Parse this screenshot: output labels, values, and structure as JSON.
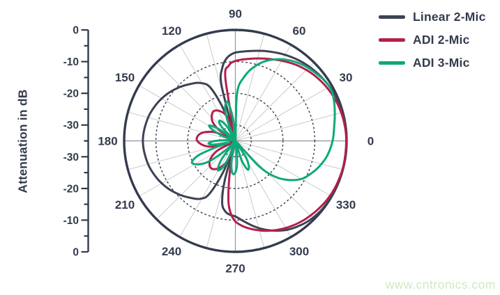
{
  "colors": {
    "text": "#343b4e",
    "outline": "#343b4e",
    "spoke": "#cbcbcb",
    "main_axis_line": "#8f9399",
    "grid_dotted": "#3c4356",
    "background": "#ffffff"
  },
  "labels": {
    "r_axis_title": "Attenuation in dB"
  },
  "legend": {
    "position": "top-right",
    "items": [
      {
        "label": "Linear 2-Mic",
        "color": "#3c4254"
      },
      {
        "label": "ADI 2-Mic",
        "color": "#b51f4a"
      },
      {
        "label": "ADI 3-Mic",
        "color": "#10a87a"
      }
    ]
  },
  "watermark": {
    "text": "www.cntronics.com",
    "color": "#cfe9c0"
  },
  "chart_data": {
    "type": "polar-line",
    "title": "",
    "r_axis": {
      "label": "Attenuation in dB",
      "range": [
        -35,
        0
      ],
      "major_tick_labels_db": [
        0,
        -10,
        -20,
        -30
      ],
      "minor_ticks_db": [
        -5,
        -15,
        -25,
        -35
      ],
      "grid_circles_db": [
        -10,
        -20,
        -30
      ]
    },
    "theta_axis": {
      "unit": "deg",
      "labels": [
        0,
        30,
        60,
        90,
        120,
        150,
        180,
        210,
        240,
        270,
        300,
        330
      ],
      "spoke_step_deg": 15
    },
    "series": [
      {
        "name": "Linear 2-Mic",
        "color": "#3c4254",
        "points": [
          [
            0,
            0
          ],
          [
            12,
            0
          ],
          [
            22,
            -0.3
          ],
          [
            32,
            -0.9
          ],
          [
            42,
            -1.7
          ],
          [
            52,
            -2.7
          ],
          [
            62,
            -3.9
          ],
          [
            72,
            -5.2
          ],
          [
            80,
            -6.2
          ],
          [
            86,
            -6.8
          ],
          [
            91,
            -7.3
          ],
          [
            96,
            -8.8
          ],
          [
            100,
            -11.5
          ],
          [
            104,
            -17
          ],
          [
            107,
            -35
          ],
          [
            110,
            -25
          ],
          [
            115,
            -16.5
          ],
          [
            121,
            -13.7
          ],
          [
            128,
            -12.2
          ],
          [
            136,
            -10.6
          ],
          [
            145,
            -9
          ],
          [
            155,
            -7.6
          ],
          [
            166,
            -6.5
          ],
          [
            180,
            -5.9
          ],
          [
            194,
            -6.5
          ],
          [
            205,
            -7.6
          ],
          [
            215,
            -9
          ],
          [
            224,
            -10.6
          ],
          [
            232,
            -12.2
          ],
          [
            239,
            -13.7
          ],
          [
            244,
            -16.5
          ],
          [
            249,
            -25
          ],
          [
            252,
            -35
          ],
          [
            255,
            -22
          ],
          [
            258,
            -15
          ],
          [
            262,
            -12.5
          ],
          [
            266,
            -11.6
          ],
          [
            270,
            -11.2
          ],
          [
            276,
            -9.5
          ],
          [
            282,
            -7.5
          ],
          [
            288,
            -5.6
          ],
          [
            294,
            -4
          ],
          [
            300,
            -2.6
          ],
          [
            307,
            -1.5
          ],
          [
            314,
            -0.7
          ],
          [
            322,
            -0.2
          ],
          [
            332,
            0
          ],
          [
            345,
            0
          ]
        ]
      },
      {
        "name": "ADI 2-Mic",
        "color": "#b51f4a",
        "points": [
          [
            0,
            -0.1
          ],
          [
            10,
            -0.3
          ],
          [
            20,
            -0.8
          ],
          [
            30,
            -1.6
          ],
          [
            40,
            -2.7
          ],
          [
            50,
            -4.1
          ],
          [
            60,
            -5.8
          ],
          [
            70,
            -7.4
          ],
          [
            80,
            -8.7
          ],
          [
            90,
            -9.8
          ],
          [
            95,
            -11.2
          ],
          [
            99,
            -15
          ],
          [
            102,
            -35
          ],
          [
            106,
            -29
          ],
          [
            111,
            -26
          ],
          [
            118,
            -24.3
          ],
          [
            126,
            -23.4
          ],
          [
            134,
            -24.3
          ],
          [
            141,
            -26
          ],
          [
            146,
            -29
          ],
          [
            151,
            -35
          ],
          [
            156,
            -29
          ],
          [
            162,
            -25.8
          ],
          [
            169,
            -23.6
          ],
          [
            177,
            -22.8
          ],
          [
            184,
            -23.8
          ],
          [
            191,
            -26
          ],
          [
            197,
            -29.5
          ],
          [
            203,
            -35
          ],
          [
            208,
            -29
          ],
          [
            214,
            -26
          ],
          [
            221,
            -24.2
          ],
          [
            229,
            -23.5
          ],
          [
            237,
            -24.5
          ],
          [
            244,
            -26.5
          ],
          [
            250,
            -29.5
          ],
          [
            255,
            -35
          ],
          [
            259,
            -27
          ],
          [
            263,
            -17
          ],
          [
            266,
            -12.5
          ],
          [
            270,
            -9.6
          ],
          [
            275,
            -8
          ],
          [
            281,
            -6.6
          ],
          [
            288,
            -5.2
          ],
          [
            295,
            -4
          ],
          [
            303,
            -2.9
          ],
          [
            311,
            -2
          ],
          [
            319,
            -1.3
          ],
          [
            327,
            -0.7
          ],
          [
            336,
            -0.3
          ],
          [
            347,
            -0.1
          ]
        ]
      },
      {
        "name": "ADI 3-Mic",
        "color": "#10a87a",
        "points": [
          [
            0,
            -4.4
          ],
          [
            8,
            -3.6
          ],
          [
            15,
            -2.6
          ],
          [
            22,
            -1.5
          ],
          [
            28,
            -0.8
          ],
          [
            33,
            -1
          ],
          [
            38,
            -1.6
          ],
          [
            48,
            -2.9
          ],
          [
            58,
            -4.8
          ],
          [
            67,
            -7.3
          ],
          [
            75,
            -10.5
          ],
          [
            82,
            -14.5
          ],
          [
            88,
            -20
          ],
          [
            93,
            -35
          ],
          [
            96,
            -28
          ],
          [
            101,
            -22.5
          ],
          [
            107,
            -24
          ],
          [
            112,
            -29
          ],
          [
            116,
            -35
          ],
          [
            120,
            -30
          ],
          [
            125,
            -27.5
          ],
          [
            130,
            -27
          ],
          [
            135,
            -29.5
          ],
          [
            140,
            -35
          ],
          [
            144,
            -29
          ],
          [
            149,
            -25.5
          ],
          [
            154,
            -27
          ],
          [
            159,
            -31
          ],
          [
            164,
            -35
          ],
          [
            170,
            -34
          ],
          [
            176,
            -32
          ],
          [
            181,
            -28
          ],
          [
            186,
            -26.5
          ],
          [
            190,
            -28.5
          ],
          [
            194,
            -33
          ],
          [
            197,
            -30
          ],
          [
            201,
            -23
          ],
          [
            206,
            -19.8
          ],
          [
            212,
            -21
          ],
          [
            218,
            -24.5
          ],
          [
            224,
            -31
          ],
          [
            228,
            -35
          ],
          [
            233,
            -28
          ],
          [
            239,
            -24.3
          ],
          [
            245,
            -26
          ],
          [
            250,
            -31
          ],
          [
            254,
            -35
          ],
          [
            259,
            -29
          ],
          [
            264,
            -25
          ],
          [
            269,
            -24.8
          ],
          [
            274,
            -27.5
          ],
          [
            279,
            -33
          ],
          [
            283,
            -35
          ],
          [
            288,
            -28.5
          ],
          [
            293,
            -25.2
          ],
          [
            298,
            -26
          ],
          [
            303,
            -29
          ],
          [
            308,
            -35
          ],
          [
            313,
            -24
          ],
          [
            318,
            -18
          ],
          [
            324,
            -14
          ],
          [
            330,
            -11
          ],
          [
            336,
            -9.2
          ],
          [
            343,
            -7.4
          ],
          [
            351,
            -5.7
          ]
        ]
      }
    ]
  }
}
